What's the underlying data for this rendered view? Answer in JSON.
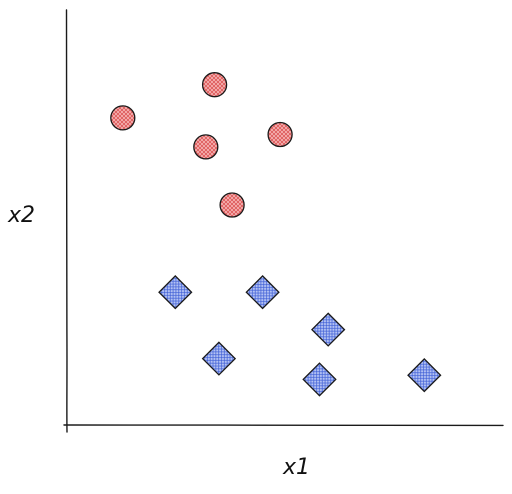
{
  "chart_data": {
    "type": "scatter",
    "title": "",
    "xlabel": "x1",
    "ylabel": "x2",
    "xlim": [
      0,
      10
    ],
    "ylim": [
      0,
      10
    ],
    "grid": false,
    "legend": "none",
    "ticks": "none",
    "series": [
      {
        "marker": "circle",
        "fill": "#f4a6a6",
        "hatch": "#d94a4a",
        "points": [
          {
            "x": 1.3,
            "y": 7.4
          },
          {
            "x": 3.4,
            "y": 8.2
          },
          {
            "x": 3.2,
            "y": 6.7
          },
          {
            "x": 4.9,
            "y": 7.0
          },
          {
            "x": 3.8,
            "y": 5.3
          }
        ]
      },
      {
        "marker": "diamond",
        "fill": "#a9b8f0",
        "hatch": "#3f5fd6",
        "points": [
          {
            "x": 2.5,
            "y": 3.2
          },
          {
            "x": 4.5,
            "y": 3.2
          },
          {
            "x": 3.5,
            "y": 1.6
          },
          {
            "x": 6.0,
            "y": 2.3
          },
          {
            "x": 5.8,
            "y": 1.1
          },
          {
            "x": 8.2,
            "y": 1.2
          }
        ]
      }
    ]
  }
}
